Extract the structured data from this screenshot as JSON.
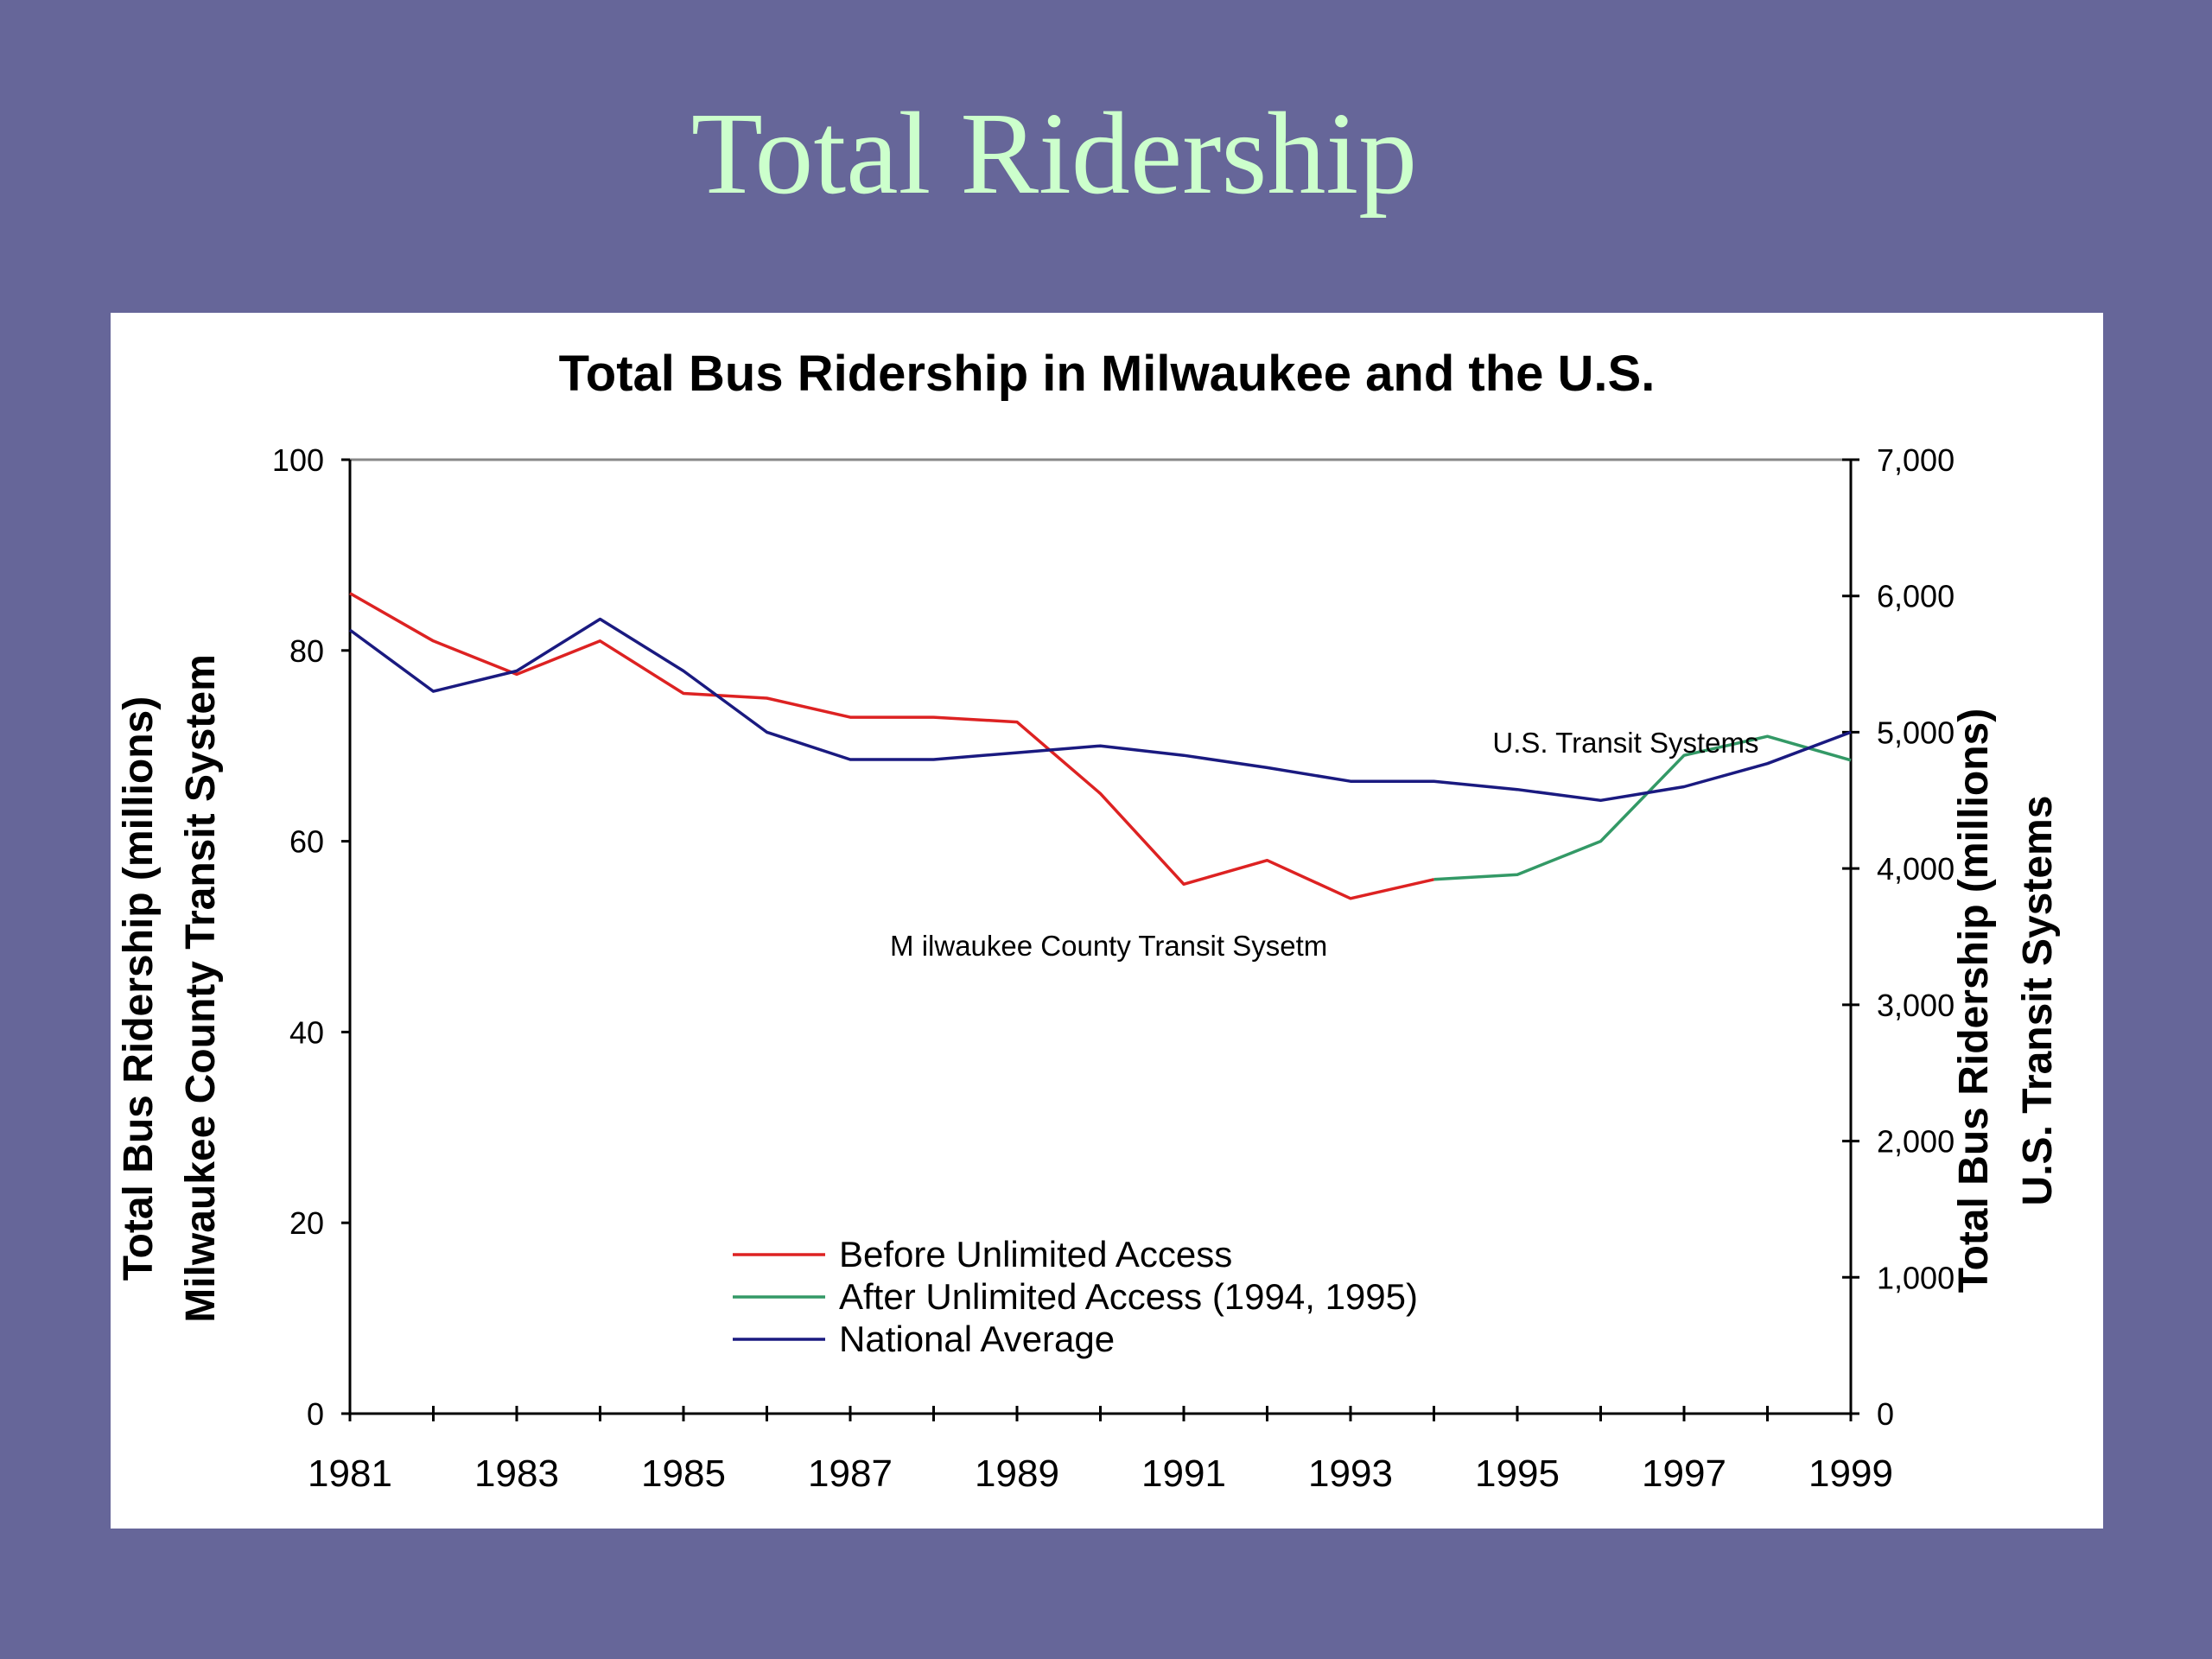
{
  "slide": {
    "title": "Total Ridership"
  },
  "chart_data": {
    "type": "line",
    "title": "Total Bus Ridership in Milwaukee and the U.S.",
    "x": [
      1981,
      1982,
      1983,
      1984,
      1985,
      1986,
      1987,
      1988,
      1989,
      1990,
      1991,
      1992,
      1993,
      1994,
      1995,
      1996,
      1997,
      1998,
      1999
    ],
    "x_ticks": [
      "1981",
      "1983",
      "1985",
      "1987",
      "1989",
      "1991",
      "1993",
      "1995",
      "1997",
      "1999"
    ],
    "xlim": [
      1981,
      1999
    ],
    "y_left": {
      "label_line1": "Total Bus Ridership (millions)",
      "label_line2": "Milwaukee County Transit System",
      "ylim": [
        0,
        100
      ],
      "ticks": [
        "0",
        "20",
        "40",
        "60",
        "80",
        "100"
      ]
    },
    "y_right": {
      "label_line1": "Total Bus Ridership (millions)",
      "label_line2": "U.S. Transit Systems",
      "ylim": [
        0,
        7000
      ],
      "ticks": [
        "0",
        "1,000",
        "2,000",
        "3,000",
        "4,000",
        "5,000",
        "6,000",
        "7,000"
      ]
    },
    "series": [
      {
        "name": "Before Unlimited Access",
        "axis": "left",
        "color": "#dd2222",
        "x": [
          1981,
          1982,
          1983,
          1984,
          1985,
          1986,
          1987,
          1988,
          1989,
          1990,
          1991,
          1992,
          1993,
          1994
        ],
        "values": [
          86,
          81,
          77.5,
          81,
          75.5,
          75,
          73,
          73,
          72.5,
          65,
          55.5,
          58,
          54,
          56
        ]
      },
      {
        "name": "After Unlimited Access (1994, 1995)",
        "axis": "left",
        "color": "#339966",
        "x": [
          1994,
          1995,
          1996,
          1997,
          1998,
          1999
        ],
        "values": [
          56,
          56.5,
          60,
          69,
          71,
          68.5
        ]
      },
      {
        "name": "National Average",
        "axis": "right",
        "color": "#1a1a80",
        "x": [
          1981,
          1982,
          1983,
          1984,
          1985,
          1986,
          1987,
          1988,
          1989,
          1990,
          1991,
          1992,
          1993,
          1994,
          1995,
          1996,
          1997,
          1998,
          1999
        ],
        "values": [
          5750,
          5300,
          5450,
          5830,
          5450,
          5000,
          4800,
          4800,
          4850,
          4900,
          4830,
          4740,
          4640,
          4640,
          4580,
          4500,
          4600,
          4770,
          5000
        ]
      }
    ],
    "annotations": [
      {
        "text": "U.S. Transit Systems",
        "x": 1996.3,
        "axis": "left",
        "y": 69.3
      },
      {
        "text": "M ilwaukee County Transit Sysetm",
        "x": 1990.1,
        "axis": "left",
        "y": 48
      }
    ],
    "legend": {
      "placement": "bottom-center"
    },
    "grid": false
  }
}
